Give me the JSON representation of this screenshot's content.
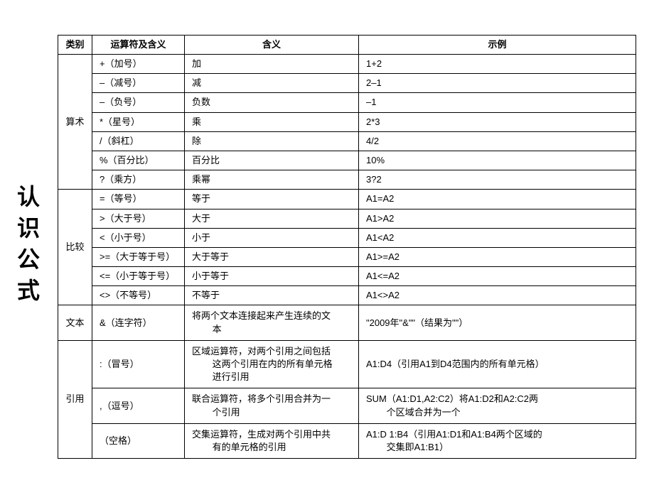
{
  "title": "认识公式",
  "headers": {
    "category": "类别",
    "operator": "运算符及含义",
    "meaning": "含义",
    "example": "示例"
  },
  "cat": {
    "arith": "算术",
    "comp": "比较",
    "text": "文本",
    "ref": "引用"
  },
  "rows": {
    "r1": {
      "op": "+（加号）",
      "mean": "加",
      "ex": "1+2"
    },
    "r2": {
      "op": "–（减号）",
      "mean": "减",
      "ex": "2–1"
    },
    "r3": {
      "op": "–（负号）",
      "mean": "负数",
      "ex": "–1"
    },
    "r4": {
      "op": "*（星号）",
      "mean": "乘",
      "ex": "2*3"
    },
    "r5": {
      "op": "/（斜杠）",
      "mean": "除",
      "ex": "4/2"
    },
    "r6": {
      "op": "%（百分比）",
      "mean": "百分比",
      "ex": "10%"
    },
    "r7": {
      "op": "?（乘方）",
      "mean": "乘幂",
      "ex": "3?2"
    },
    "r8": {
      "op": "=（等号）",
      "mean": "等于",
      "ex": "A1=A2"
    },
    "r9": {
      "op": ">（大于号）",
      "mean": "大于",
      "ex": "A1>A2"
    },
    "r10": {
      "op": "<（小于号）",
      "mean": "小于",
      "ex": "A1<A2"
    },
    "r11": {
      "op": ">=（大于等于号）",
      "mean": "大于等于",
      "ex": "A1>=A2"
    },
    "r12": {
      "op": "<=（小于等于号）",
      "mean": "小于等于",
      "ex": "A1<=A2"
    },
    "r13": {
      "op": "<>（不等号）",
      "mean": "不等于",
      "ex": "A1<>A2"
    },
    "r14": {
      "op": "&（连字符）",
      "mean_l1": "将两个文本连接起来产生连续的文",
      "mean_l2": "本",
      "ex": "\"2009年\"&\"\"（结果为\"\"）"
    },
    "r15": {
      "op": "  :（冒号）",
      "mean_l1": "区域运算符，对两个引用之间包括",
      "mean_l2": "这两个引用在内的所有单元格",
      "mean_l3": "进行引用",
      "ex": "A1:D4（引用A1到D4范围内的所有单元格）"
    },
    "r16": {
      "op": "  ,（逗号）",
      "mean_l1": "联合运算符，将多个引用合并为一",
      "mean_l2": "个引用",
      "ex_l1": "SUM（A1:D1,A2:C2）将A1:D2和A2:C2两",
      "ex_l2": "个区域合并为一个"
    },
    "r17": {
      "op": "   （空格）",
      "mean_l1": "交集运算符，生成对两个引用中共",
      "mean_l2": "有的单元格的引用",
      "ex_l1": "A1:D 1:B4（引用A1:D1和A1:B4两个区域的",
      "ex_l2": "交集即A1:B1）"
    }
  },
  "style": {
    "border_color": "#000000",
    "bg_color": "#ffffff",
    "font_size_body": 13,
    "font_size_title": 32
  }
}
